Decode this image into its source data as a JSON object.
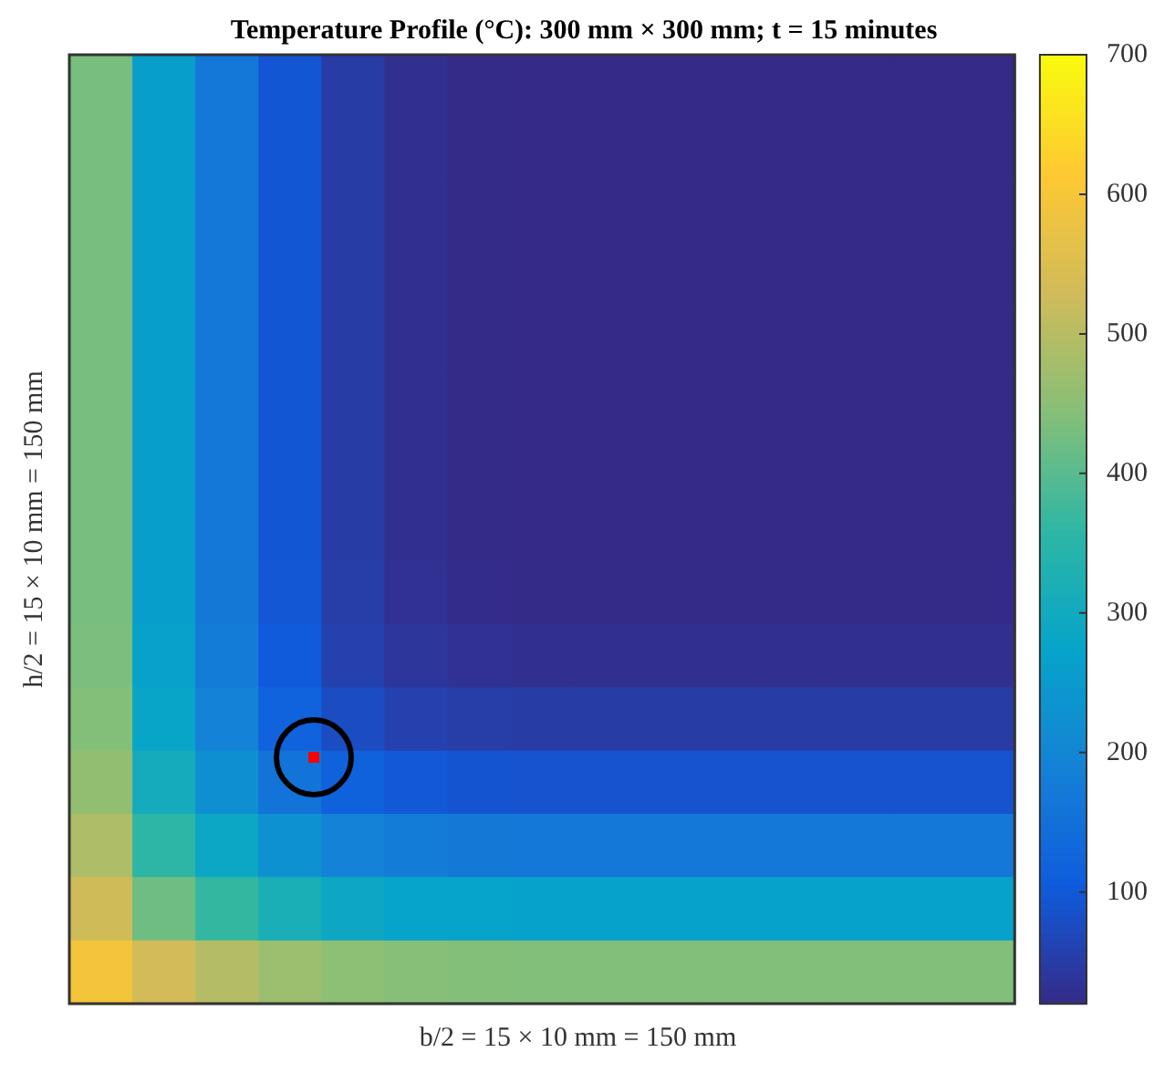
{
  "chart_data": {
    "type": "heatmap",
    "title": "Temperature Profile (°C): 300 mm × 300 mm; t = 15 minutes",
    "xlabel": "b/2 = 15 × 10 mm = 150 mm",
    "ylabel": "h/2 = 15 × 10 mm = 150 mm",
    "categories": [
      null,
      null,
      null,
      null,
      null,
      null,
      null,
      null,
      null,
      null,
      null,
      null,
      null,
      null,
      null
    ],
    "y_categories": [
      null,
      null,
      null,
      null,
      null,
      null,
      null,
      null,
      null,
      null,
      null,
      null,
      null,
      null,
      null
    ],
    "cells": [
      [
        430,
        260,
        170,
        95,
        50,
        30,
        22,
        20,
        20,
        20,
        20,
        20,
        20,
        20,
        20
      ],
      [
        430,
        260,
        170,
        95,
        50,
        30,
        22,
        20,
        20,
        20,
        20,
        20,
        20,
        20,
        20
      ],
      [
        430,
        260,
        170,
        95,
        50,
        30,
        22,
        20,
        20,
        20,
        20,
        20,
        20,
        20,
        20
      ],
      [
        430,
        260,
        170,
        95,
        50,
        30,
        22,
        20,
        20,
        20,
        20,
        20,
        20,
        20,
        20
      ],
      [
        430,
        260,
        170,
        95,
        50,
        30,
        22,
        20,
        20,
        20,
        20,
        20,
        20,
        20,
        20
      ],
      [
        430,
        260,
        170,
        95,
        50,
        30,
        22,
        20,
        20,
        20,
        20,
        20,
        20,
        20,
        20
      ],
      [
        430,
        260,
        170,
        95,
        50,
        30,
        22,
        20,
        20,
        20,
        20,
        20,
        20,
        20,
        20
      ],
      [
        430,
        260,
        170,
        95,
        50,
        30,
        22,
        20,
        20,
        20,
        20,
        20,
        20,
        20,
        20
      ],
      [
        431,
        261,
        172,
        97,
        52,
        32,
        24,
        22,
        22,
        22,
        22,
        22,
        22,
        22,
        22
      ],
      [
        434,
        267,
        178,
        104,
        59,
        40,
        32,
        30,
        30,
        30,
        30,
        30,
        30,
        30,
        30
      ],
      [
        442,
        279,
        193,
        121,
        78,
        59,
        52,
        50,
        50,
        50,
        50,
        50,
        50,
        50,
        50
      ],
      [
        458,
        306,
        225,
        157,
        117,
        99,
        92,
        90,
        90,
        90,
        90,
        90,
        90,
        90,
        90
      ],
      [
        490,
        357,
        287,
        229,
        193,
        178,
        172,
        170,
        170,
        170,
        170,
        170,
        170,
        170,
        170
      ],
      [
        529,
        422,
        365,
        318,
        289,
        276,
        272,
        270,
        270,
        270,
        270,
        270,
        270,
        270,
        270
      ],
      [
        597,
        532,
        497,
        469,
        452,
        444,
        441,
        440,
        440,
        440,
        440,
        440,
        440,
        440,
        440
      ]
    ],
    "clim": [
      20,
      700
    ],
    "cticks": [
      100,
      200,
      300,
      400,
      500,
      600,
      700
    ],
    "tick_labels": false
  }
}
